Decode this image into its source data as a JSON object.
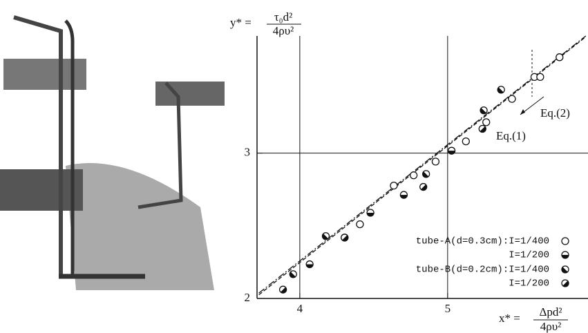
{
  "chart_data": {
    "type": "scatter",
    "x_label": {
      "lhs": "x* =",
      "num": "Δpd²",
      "den": "4ρυ²"
    },
    "y_label": {
      "lhs": "y* =",
      "num": "τ₀d²",
      "den": "4ρυ²"
    },
    "log_x": true,
    "log_y": true,
    "xlim": [
      3.75,
      6.18
    ],
    "ylim": [
      2,
      4.16
    ],
    "xticks": [
      4,
      5
    ],
    "yticks": [
      2,
      3
    ],
    "grid": true,
    "color": "#111111",
    "legend_position": "lower right",
    "series": [
      {
        "name": "tube-A(d=0.3cm):I=1/400",
        "marker": "open",
        "x": [
          4.38,
          4.61,
          4.75,
          4.91,
          5.14,
          5.3,
          5.51,
          5.7,
          5.75,
          5.92
        ],
        "values": [
          2.46,
          2.74,
          2.82,
          2.93,
          3.1,
          3.27,
          3.49,
          3.71,
          3.71,
          3.92
        ]
      },
      {
        "name": "I=1/200",
        "marker": "half-bottom",
        "x": [
          4.06,
          4.45,
          4.68,
          5.03
        ],
        "values": [
          2.2,
          2.54,
          2.67,
          3.02
        ]
      },
      {
        "name": "tube-B(d=0.2cm):I=1/400",
        "marker": "half-diagonal-up",
        "x": [
          3.96,
          4.16,
          4.28,
          4.84,
          5.28,
          5.42
        ],
        "values": [
          2.14,
          2.38,
          2.37,
          2.83,
          3.38,
          3.58
        ]
      },
      {
        "name": "I=1/200",
        "marker": "half-diagonal-down",
        "x": [
          3.9,
          4.28,
          4.82,
          5.27
        ],
        "values": [
          2.05,
          2.37,
          2.73,
          3.21
        ]
      }
    ],
    "lines": [
      {
        "label": "Eq.(1)",
        "x": [
          3.76,
          6.16
        ],
        "values": [
          2.03,
          4.16
        ]
      },
      {
        "label": "Eq.(2)",
        "x": [
          3.76,
          6.16
        ],
        "values": [
          2.02,
          4.15
        ]
      }
    ]
  }
}
